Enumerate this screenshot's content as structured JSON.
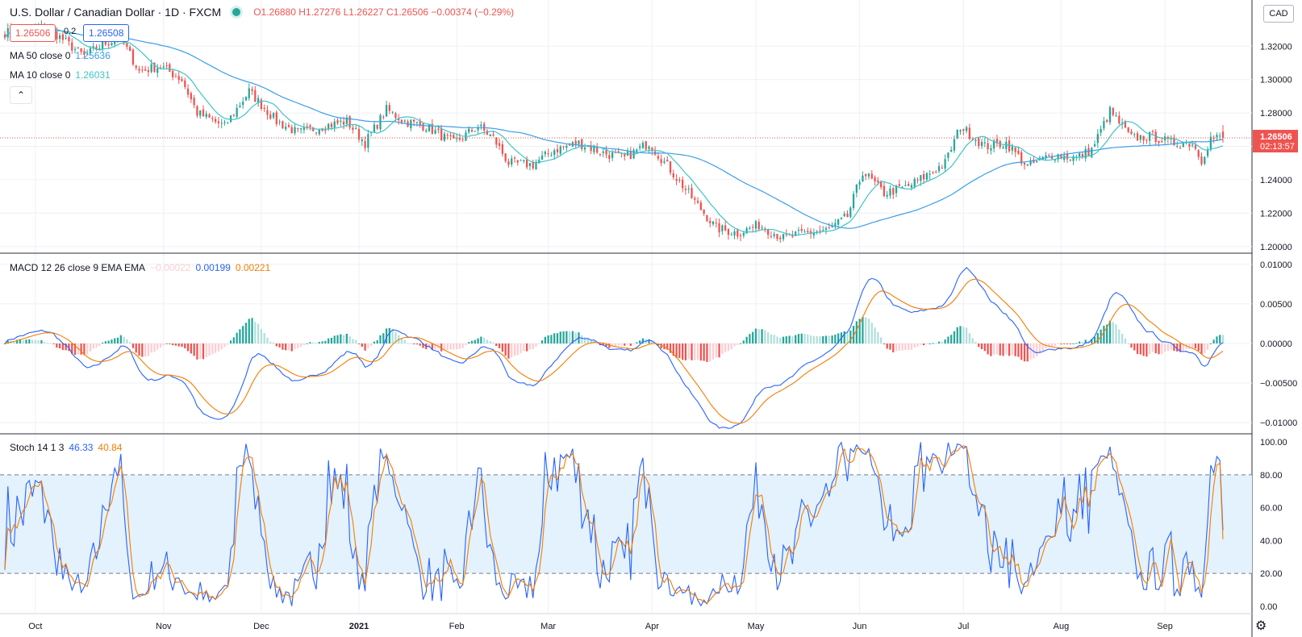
{
  "header": {
    "symbol": "U.S. Dollar / Canadian Dollar · 1D · FXCM",
    "ohlc": "O1.26880 H1.27276 L1.26227 C1.26506 −0.00374 (−0.29%)",
    "sell_price": "1.26506",
    "spread": "0.2",
    "buy_price": "1.26508",
    "ma50_label": "MA 50 close 0",
    "ma50_value": "1.25636",
    "ma10_label": "MA 10 close 0",
    "ma10_value": "1.26031",
    "collapse_icon": "chevron-up-icon",
    "currency_button": "CAD"
  },
  "macd_legend": {
    "label": "MACD 12 26 close 9 EMA EMA",
    "hist": "−0.00022",
    "macd": "0.00199",
    "signal": "0.00221"
  },
  "stoch_legend": {
    "label": "Stoch 14 1 3",
    "k": "46.33",
    "d": "40.84"
  },
  "price_tag": {
    "value": "1.26506",
    "countdown": "02:13:57"
  },
  "colors": {
    "up": "#26a69a",
    "down": "#ef5350",
    "ma50": "#3a9ee8",
    "ma10": "#3fc4c4",
    "macd": "#2962ff",
    "signal": "#f57c00",
    "stoch_k": "#2962ff",
    "stoch_d": "#f57c00",
    "band": "#e3f2fd"
  },
  "chart_data": [
    {
      "type": "candlestick",
      "x_ticks": [
        "Oct",
        "Nov",
        "Dec",
        "2021",
        "Feb",
        "Mar",
        "Apr",
        "May",
        "Jun",
        "Jul",
        "Aug",
        "Sep"
      ],
      "y_ticks": [
        "1.32000",
        "1.30000",
        "1.28000",
        "1.26000",
        "1.24000",
        "1.22000",
        "1.20000"
      ],
      "ylim": [
        1.1965,
        1.3467
      ],
      "close_anchors": [
        [
          0,
          1.328
        ],
        [
          14,
          1.331
        ],
        [
          26,
          1.314
        ],
        [
          33,
          1.322
        ],
        [
          38,
          1.325
        ],
        [
          44,
          1.305
        ],
        [
          51,
          1.308
        ],
        [
          58,
          1.3
        ],
        [
          63,
          1.28
        ],
        [
          72,
          1.272
        ],
        [
          80,
          1.293
        ],
        [
          89,
          1.275
        ],
        [
          96,
          1.268
        ],
        [
          104,
          1.272
        ],
        [
          112,
          1.275
        ],
        [
          118,
          1.262
        ],
        [
          125,
          1.282
        ],
        [
          131,
          1.275
        ],
        [
          138,
          1.272
        ],
        [
          147,
          1.262
        ],
        [
          155,
          1.272
        ],
        [
          160,
          1.265
        ],
        [
          165,
          1.25
        ],
        [
          173,
          1.249
        ],
        [
          180,
          1.258
        ],
        [
          188,
          1.262
        ],
        [
          196,
          1.256
        ],
        [
          203,
          1.253
        ],
        [
          211,
          1.262
        ],
        [
          218,
          1.246
        ],
        [
          226,
          1.227
        ],
        [
          233,
          1.211
        ],
        [
          240,
          1.208
        ],
        [
          247,
          1.213
        ],
        [
          255,
          1.205
        ],
        [
          262,
          1.208
        ],
        [
          270,
          1.21
        ],
        [
          276,
          1.218
        ],
        [
          281,
          1.245
        ],
        [
          288,
          1.232
        ],
        [
          296,
          1.236
        ],
        [
          303,
          1.244
        ],
        [
          308,
          1.25
        ],
        [
          313,
          1.272
        ],
        [
          321,
          1.26
        ],
        [
          328,
          1.262
        ],
        [
          335,
          1.248
        ],
        [
          343,
          1.255
        ],
        [
          351,
          1.253
        ],
        [
          356,
          1.258
        ],
        [
          362,
          1.281
        ],
        [
          369,
          1.265
        ],
        [
          376,
          1.266
        ],
        [
          382,
          1.262
        ],
        [
          389,
          1.262
        ],
        [
          392,
          1.252
        ],
        [
          395,
          1.265
        ]
      ],
      "last": {
        "open": 1.2688,
        "high": 1.27276,
        "low": 1.26227,
        "close": 1.26506
      },
      "ma_periods": [
        50,
        10
      ]
    },
    {
      "type": "line",
      "name": "MACD 12 26 close 9 EMA EMA",
      "y_ticks": [
        "0.01000",
        "0.00500",
        "0.00000",
        "−0.00500",
        "−0.01000"
      ],
      "ylim": [
        -0.0113,
        0.0112
      ]
    },
    {
      "type": "line",
      "name": "Stoch 14 1 3",
      "y_ticks": [
        "100.00",
        "80.00",
        "60.00",
        "40.00",
        "20.00",
        "0.00"
      ],
      "ylim": [
        -4,
        104
      ],
      "bands": [
        20,
        80
      ]
    }
  ]
}
